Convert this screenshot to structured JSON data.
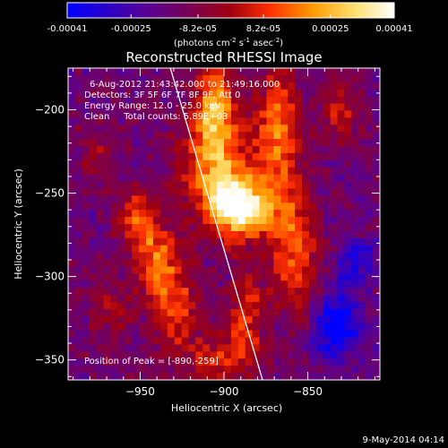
{
  "chart_data": {
    "type": "heatmap",
    "title": "Reconstructed RHESSI Image",
    "xlabel": "Heliocentric X (arcsec)",
    "ylabel": "Heliocentric Y (arcsec)",
    "xlim": [
      -993,
      -807
    ],
    "ylim": [
      -362,
      -175
    ],
    "x_ticks": [
      -950,
      -900,
      -850
    ],
    "y_ticks": [
      -200,
      -250,
      -300,
      -350
    ],
    "colorbar": {
      "range": [
        -0.00041,
        0.00041
      ],
      "ticks": [
        "-0.00041",
        "-0.00025",
        "-8.2e-05",
        "8.2e-05",
        "0.00025",
        "0.00041"
      ],
      "unit_parts": [
        "(photons cm",
        "-2",
        " s",
        "-1",
        " asec",
        "-2",
        ")"
      ],
      "colormap": [
        "#0000ff",
        "#2a00c8",
        "#5a0090",
        "#7a0050",
        "#a00010",
        "#ff3000",
        "#ff9a00",
        "#ffe070",
        "#ffffff"
      ]
    },
    "annotations": [
      "6-Aug-2012 21:43:42.000 to 21:49:16.000",
      "Detectors: 3F 5F 6F 7F 8F 9F, Att 0",
      "Energy Range: 12.0 - 25.0 keV",
      "Clean     Total counts: 5.89E+03"
    ],
    "peak_label": "Position of Peak = [-890,-259]",
    "peak": [
      -890,
      -259
    ],
    "limb_line": [
      [
        -932,
        -175
      ],
      [
        -877,
        -362
      ]
    ],
    "sources": [
      {
        "x": -890,
        "y": -259,
        "amp": 1.0,
        "sx": 12,
        "sy": 12
      },
      {
        "x": -905,
        "y": -233,
        "amp": 0.65,
        "sx": 14,
        "sy": 22
      },
      {
        "x": -905,
        "y": -195,
        "amp": 0.55,
        "sx": 8,
        "sy": 18
      },
      {
        "x": -868,
        "y": -215,
        "amp": 0.55,
        "sx": 9,
        "sy": 30
      },
      {
        "x": -858,
        "y": -285,
        "amp": 0.5,
        "sx": 10,
        "sy": 25
      },
      {
        "x": -940,
        "y": -290,
        "amp": 0.5,
        "sx": 10,
        "sy": 14
      },
      {
        "x": -952,
        "y": -265,
        "amp": 0.45,
        "sx": 9,
        "sy": 12
      },
      {
        "x": -930,
        "y": -320,
        "amp": 0.45,
        "sx": 10,
        "sy": 16
      },
      {
        "x": -887,
        "y": -325,
        "amp": 0.4,
        "sx": 8,
        "sy": 20
      },
      {
        "x": -905,
        "y": -350,
        "amp": 0.35,
        "sx": 14,
        "sy": 10
      },
      {
        "x": -968,
        "y": -318,
        "amp": 0.25,
        "sx": 8,
        "sy": 12
      },
      {
        "x": -830,
        "y": -200,
        "amp": 0.3,
        "sx": 8,
        "sy": 14
      },
      {
        "x": -975,
        "y": -225,
        "amp": 0.2,
        "sx": 8,
        "sy": 12
      }
    ],
    "negative_sources": [
      {
        "x": -832,
        "y": -330,
        "amp": -0.55,
        "sx": 10,
        "sy": 14
      },
      {
        "x": -822,
        "y": -290,
        "amp": -0.35,
        "sx": 8,
        "sy": 10
      }
    ]
  },
  "footer": {
    "timestamp": "9-May-2014 04:14"
  }
}
